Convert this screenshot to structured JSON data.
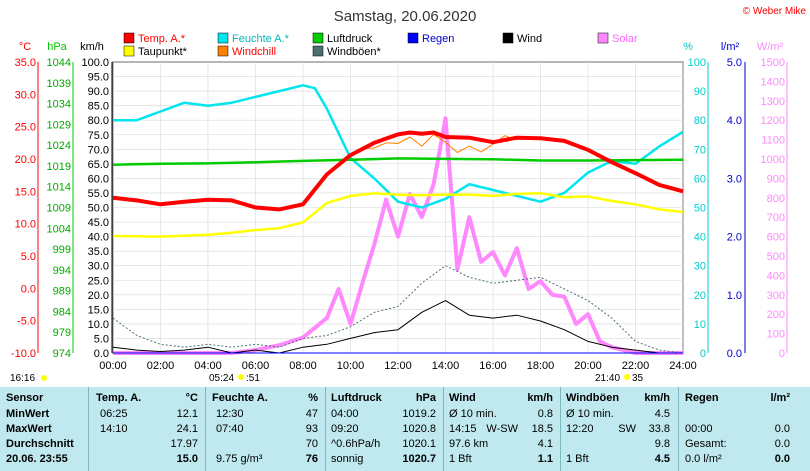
{
  "title": "Samstag, 20.06.2020",
  "credit": "© Weber Mike",
  "legend": [
    {
      "label": "Temp. A.*",
      "color": "#ff0000"
    },
    {
      "label": "Taupunkt*",
      "color": "#ffff00"
    },
    {
      "label": "Feuchte A.*",
      "color": "#00e5ee"
    },
    {
      "label": "Windchill",
      "color": "#ff7f00"
    },
    {
      "label": "Luftdruck",
      "color": "#00cc00"
    },
    {
      "label": "Windböen*",
      "color": "#4a7070"
    },
    {
      "label": "Regen",
      "color": "#0000ff"
    },
    {
      "label": "Wind",
      "color": "#000000"
    },
    {
      "label": "Solar",
      "color": "#ff88ff"
    }
  ],
  "axes": {
    "temp_unit": "°C",
    "hpa_unit": "hPa",
    "kmh_unit": "km/h",
    "pct_unit": "%",
    "rain_unit": "l/m²",
    "solar_unit": "W/m²",
    "temp_ticks": [
      "35.0",
      "30.0",
      "25.0",
      "20.0",
      "15.0",
      "10.0",
      "5.0",
      "0.0",
      "-5.0",
      "-10.0"
    ],
    "hpa_ticks": [
      "1044",
      "1039",
      "1034",
      "1029",
      "1024",
      "1019",
      "1014",
      "1009",
      "1004",
      "999",
      "994",
      "989",
      "984",
      "979",
      "974"
    ],
    "kmh_ticks": [
      "100.0",
      "95.0",
      "90.0",
      "85.0",
      "80.0",
      "75.0",
      "70.0",
      "65.0",
      "60.0",
      "55.0",
      "50.0",
      "45.0",
      "40.0",
      "35.0",
      "30.0",
      "25.0",
      "20.0",
      "15.0",
      "10.0",
      "5.0",
      "0.0"
    ],
    "pct_ticks": [
      "100",
      "90",
      "80",
      "70",
      "60",
      "50",
      "40",
      "30",
      "20",
      "10",
      "0"
    ],
    "rain_ticks": [
      "5.0",
      "4.0",
      "3.0",
      "2.0",
      "1.0",
      "0.0"
    ],
    "solar_ticks": [
      "1500",
      "1400",
      "1300",
      "1200",
      "1100",
      "1000",
      "900",
      "800",
      "700",
      "600",
      "500",
      "400",
      "300",
      "200",
      "100",
      "0"
    ],
    "time_ticks": [
      "00:00",
      "02:00",
      "04:00",
      "06:00",
      "08:00",
      "10:00",
      "12:00",
      "14:00",
      "16:00",
      "18:00",
      "20:00",
      "22:00",
      "24:00"
    ]
  },
  "sun": {
    "sunrise": "05:24",
    "sunrise_moon": ":51",
    "sunset": "21:40",
    "sunset_moon": "35",
    "last_update": "16:16"
  },
  "chart_data": {
    "type": "line",
    "x_unit": "hour",
    "x_range": [
      0,
      24
    ],
    "series": [
      {
        "name": "Temp. A.*",
        "axis": "°C",
        "x": [
          0,
          1,
          2,
          3,
          4,
          5,
          6,
          7,
          8,
          9,
          10,
          11,
          12,
          12.5,
          13,
          13.5,
          14,
          15,
          16,
          17,
          18,
          19,
          20,
          21,
          22,
          23,
          24
        ],
        "y": [
          14.0,
          13.6,
          13.0,
          13.4,
          13.7,
          13.6,
          12.5,
          12.2,
          13.0,
          17.6,
          20.6,
          22.5,
          23.8,
          24.1,
          23.9,
          24.1,
          23.4,
          23.3,
          22.6,
          23.3,
          23.2,
          22.8,
          21.4,
          19.5,
          17.8,
          16.0,
          15.0
        ]
      },
      {
        "name": "Taupunkt*",
        "axis": "°C",
        "x": [
          0,
          2,
          4,
          5,
          6,
          7,
          8,
          9,
          10,
          11,
          12,
          13,
          14,
          15,
          16,
          17,
          18,
          19,
          20,
          21,
          22,
          23,
          24
        ],
        "y": [
          8.1,
          8.0,
          8.3,
          8.6,
          9.0,
          9.3,
          10.2,
          13.2,
          14.3,
          14.7,
          14.5,
          14.4,
          14.5,
          14.5,
          14.3,
          14.6,
          14.7,
          14.1,
          14.2,
          13.5,
          13.0,
          12.2,
          11.8
        ]
      },
      {
        "name": "Feuchte A.*",
        "axis": "%",
        "x": [
          0,
          1,
          2,
          3,
          4,
          5,
          6,
          7,
          8,
          8.5,
          9,
          10,
          11,
          12,
          13,
          14,
          15,
          16,
          17,
          18,
          19,
          20,
          21,
          22,
          23,
          24
        ],
        "y": [
          80,
          80,
          83,
          86,
          85,
          86,
          88,
          90,
          92,
          91,
          84,
          67,
          60,
          52,
          50,
          53,
          58,
          56,
          54,
          52,
          55,
          62,
          66,
          65,
          71,
          76
        ]
      },
      {
        "name": "Windchill",
        "axis": "°C",
        "x": [
          10,
          10.5,
          11,
          11.5,
          12,
          12.5,
          13,
          13.5,
          14,
          14.5,
          15,
          15.5,
          16,
          16.5,
          17
        ],
        "y": [
          20.3,
          21.6,
          21.7,
          22.5,
          22.4,
          23.4,
          22.0,
          23.8,
          22.6,
          21.0,
          22.0,
          21.1,
          22.3,
          23.6,
          22.9
        ]
      },
      {
        "name": "Luftdruck",
        "axis": "hPa",
        "x": [
          0,
          2,
          4,
          6,
          8,
          10,
          12,
          14,
          16,
          18,
          20,
          22,
          24
        ],
        "y": [
          1019.3,
          1019.5,
          1019.6,
          1019.9,
          1020.2,
          1020.5,
          1020.8,
          1020.7,
          1020.6,
          1020.3,
          1020.3,
          1020.4,
          1020.5
        ]
      },
      {
        "name": "Windböen*",
        "axis": "km/h",
        "x": [
          0,
          1,
          2,
          3,
          4,
          5,
          6,
          7,
          8,
          9,
          10,
          11,
          12,
          13,
          14,
          15,
          16,
          17,
          18,
          19,
          20,
          21,
          22,
          23,
          24
        ],
        "y": [
          12,
          6,
          3,
          2,
          3,
          2,
          3,
          2,
          5,
          6,
          9,
          14,
          16,
          24,
          30,
          26,
          24,
          25,
          26,
          22,
          18,
          12,
          4,
          1,
          0
        ]
      },
      {
        "name": "Wind",
        "axis": "km/h",
        "x": [
          0,
          1,
          2,
          3,
          4,
          5,
          6,
          7,
          8,
          9,
          10,
          11,
          12,
          13,
          14,
          15,
          16,
          17,
          18,
          19,
          20,
          21,
          22,
          23,
          24
        ],
        "y": [
          2,
          1,
          0.5,
          1,
          2,
          0,
          1,
          0,
          2,
          3,
          5,
          7,
          8,
          14,
          18,
          13,
          12,
          13,
          11,
          8,
          4,
          2,
          1,
          0,
          0
        ]
      },
      {
        "name": "Solar",
        "axis": "W/m²",
        "x": [
          0,
          5,
          6,
          7,
          8,
          9,
          9.5,
          10,
          10.5,
          11,
          11.5,
          12,
          12.5,
          13,
          13.5,
          14,
          14.5,
          15,
          15.5,
          16,
          16.5,
          17,
          17.5,
          18,
          18.5,
          19,
          19.5,
          20,
          20.5,
          21,
          22,
          24
        ],
        "y": [
          0,
          0,
          15,
          40,
          80,
          180,
          330,
          150,
          360,
          560,
          790,
          600,
          820,
          700,
          870,
          1210,
          430,
          700,
          470,
          520,
          400,
          540,
          330,
          370,
          300,
          290,
          150,
          200,
          60,
          30,
          0,
          0
        ]
      },
      {
        "name": "Regen",
        "axis": "l/m²",
        "x": [
          0,
          24
        ],
        "y": [
          0,
          0
        ]
      }
    ],
    "ylims": {
      "°C": [
        -10,
        35
      ],
      "hPa": [
        974,
        1044
      ],
      "km/h": [
        0,
        100
      ],
      "%": [
        0,
        100
      ],
      "l/m²": [
        0,
        5
      ],
      "W/m²": [
        0,
        1500
      ]
    }
  },
  "stats": {
    "header": {
      "sensor": "Sensor",
      "temp": "Temp. A.",
      "temp_unit": "°C",
      "hum": "Feuchte A.",
      "hum_unit": "%",
      "press": "Luftdruck",
      "press_unit": "hPa",
      "wind": "Wind",
      "wind_unit": "km/h",
      "gust": "Windböen",
      "gust_unit": "km/h",
      "rain": "Regen",
      "rain_unit": "l/m²"
    },
    "rows": [
      {
        "label": "MinWert",
        "temp_time": "06:25",
        "temp_val": "12.1",
        "hum_time": "12:30",
        "hum_val": "47",
        "press_time": "04:00",
        "press_val": "1019.2",
        "wind_time": "Ø 10 min.",
        "wind_dir": "",
        "wind_val": "0.8",
        "gust_time": "Ø 10 min.",
        "gust_dir": "",
        "gust_val": "4.5",
        "rain_label": "",
        "rain_val": ""
      },
      {
        "label": "MaxWert",
        "temp_time": "14:10",
        "temp_val": "24.1",
        "hum_time": "07:40",
        "hum_val": "93",
        "press_time": "09:20",
        "press_val": "1020.8",
        "wind_time": "14:15",
        "wind_dir": "W-SW",
        "wind_val": "18.5",
        "gust_time": "12:20",
        "gust_dir": "SW",
        "gust_val": "33.8",
        "rain_label": "00:00",
        "rain_val": "0.0"
      },
      {
        "label": "Durchschnitt",
        "temp_time": "",
        "temp_val": "17.97",
        "hum_time": "",
        "hum_val": "70",
        "press_time": "^0.6hPa/h",
        "press_val": "1020.1",
        "wind_time": "97.6 km",
        "wind_dir": "",
        "wind_val": "4.1",
        "gust_time": "",
        "gust_dir": "",
        "gust_val": "9.8",
        "rain_label": "Gesamt:",
        "rain_val": "0.0"
      },
      {
        "label": "20.06. 23:55",
        "temp_time": "",
        "temp_val": "15.0",
        "hum_time": "9.75 g/m³",
        "hum_val": "76",
        "press_time": "sonnig",
        "press_val": "1020.7",
        "wind_time": "1 Bft",
        "wind_dir": "",
        "wind_val": "1.1",
        "gust_time": "1 Bft",
        "gust_dir": "",
        "gust_val": "4.5",
        "rain_label": "0.0 l/m²",
        "rain_val": "0.0"
      }
    ]
  }
}
